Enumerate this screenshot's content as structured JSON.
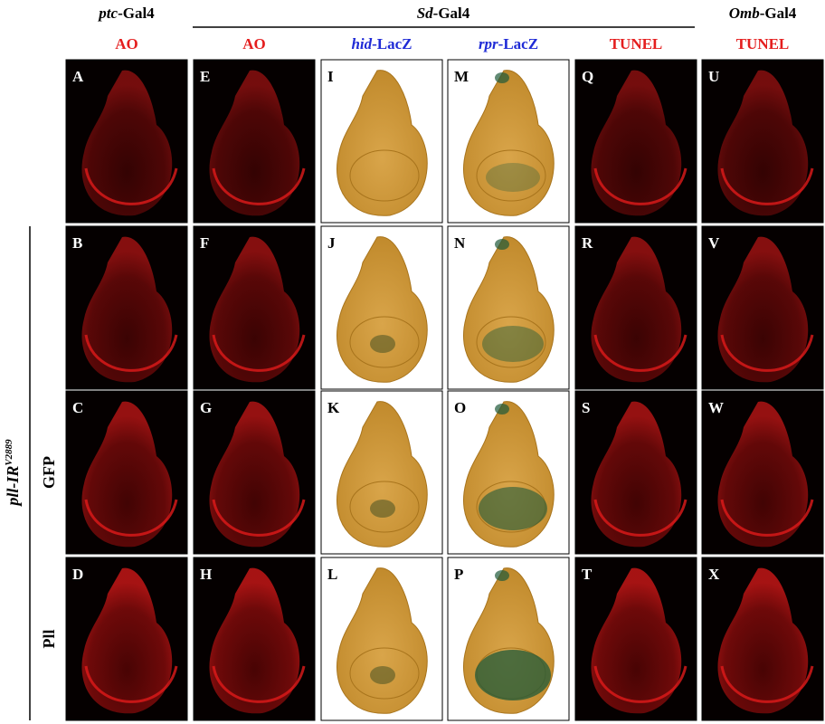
{
  "header": {
    "genotypes": [
      {
        "italic": "ptc",
        "text": "-Gal4"
      },
      {
        "italic": "Sd",
        "text": "-Gal4"
      },
      {
        "italic": "Omb",
        "text": "-Gal4"
      }
    ],
    "stains": [
      {
        "text": "AO"
      },
      {
        "text": "AO"
      },
      {
        "italic": "hid",
        "text": "-LacZ"
      },
      {
        "italic": "rpr",
        "text": "-LacZ"
      },
      {
        "text": "TUNEL"
      },
      {
        "text": "TUNEL"
      }
    ]
  },
  "side_label": {
    "italic": "pll-IR",
    "sup": "V2889"
  },
  "row_labels": [
    "GFP",
    "Pll"
  ],
  "panels": [
    [
      "A",
      "E",
      "I",
      "M",
      "Q",
      "U"
    ],
    [
      "B",
      "F",
      "J",
      "N",
      "R",
      "V"
    ],
    [
      "C",
      "G",
      "K",
      "O",
      "S",
      "W"
    ],
    [
      "D",
      "H",
      "L",
      "P",
      "T",
      "X"
    ]
  ]
}
